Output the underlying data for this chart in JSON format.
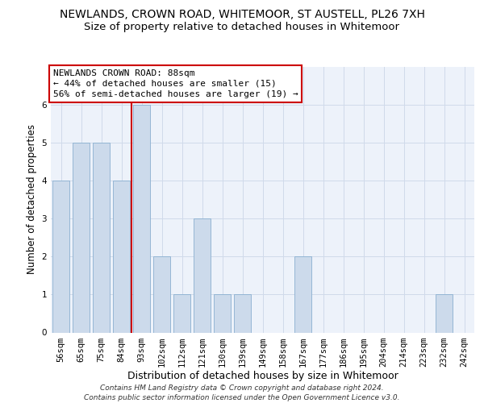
{
  "title": "NEWLANDS, CROWN ROAD, WHITEMOOR, ST AUSTELL, PL26 7XH",
  "subtitle": "Size of property relative to detached houses in Whitemoor",
  "xlabel": "Distribution of detached houses by size in Whitemoor",
  "ylabel": "Number of detached properties",
  "categories": [
    "56sqm",
    "65sqm",
    "75sqm",
    "84sqm",
    "93sqm",
    "102sqm",
    "112sqm",
    "121sqm",
    "130sqm",
    "139sqm",
    "149sqm",
    "158sqm",
    "167sqm",
    "177sqm",
    "186sqm",
    "195sqm",
    "204sqm",
    "214sqm",
    "223sqm",
    "232sqm",
    "242sqm"
  ],
  "values": [
    4,
    5,
    5,
    4,
    6,
    2,
    1,
    3,
    1,
    1,
    0,
    0,
    2,
    0,
    0,
    0,
    0,
    0,
    0,
    1,
    0
  ],
  "bar_color": "#ccdaeb",
  "bar_edge_color": "#8aafd0",
  "grid_color": "#d0daea",
  "background_color": "#ffffff",
  "plot_bg_color": "#edf2fa",
  "annotation_text": "NEWLANDS CROWN ROAD: 88sqm\n← 44% of detached houses are smaller (15)\n56% of semi-detached houses are larger (19) →",
  "annotation_box_color": "#ffffff",
  "annotation_box_edge": "#cc0000",
  "vline_x": 3.5,
  "vline_color": "#cc0000",
  "ylim": [
    0,
    7
  ],
  "yticks": [
    0,
    1,
    2,
    3,
    4,
    5,
    6
  ],
  "footnote_line1": "Contains HM Land Registry data © Crown copyright and database right 2024.",
  "footnote_line2": "Contains public sector information licensed under the Open Government Licence v3.0.",
  "title_fontsize": 10,
  "subtitle_fontsize": 9.5,
  "xlabel_fontsize": 9,
  "ylabel_fontsize": 8.5,
  "tick_fontsize": 7.5,
  "annot_fontsize": 8,
  "footnote_fontsize": 6.5
}
